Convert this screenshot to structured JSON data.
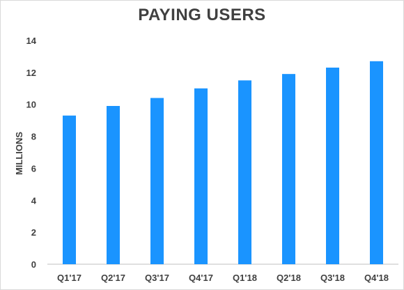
{
  "chart_data": {
    "type": "bar",
    "title": "PAYING USERS",
    "xlabel": "",
    "ylabel": "MILLIONS",
    "categories": [
      "Q1'17",
      "Q2'17",
      "Q3'17",
      "Q4'17",
      "Q1'18",
      "Q2'18",
      "Q3'18",
      "Q4'18"
    ],
    "values": [
      9.3,
      9.9,
      10.4,
      11.0,
      11.5,
      11.9,
      12.3,
      12.7
    ],
    "ylim": [
      0,
      14
    ],
    "yticks": [
      0,
      2,
      4,
      6,
      8,
      10,
      12,
      14
    ],
    "grid": false,
    "legend": "none",
    "bar_color": "#1a94ff"
  }
}
